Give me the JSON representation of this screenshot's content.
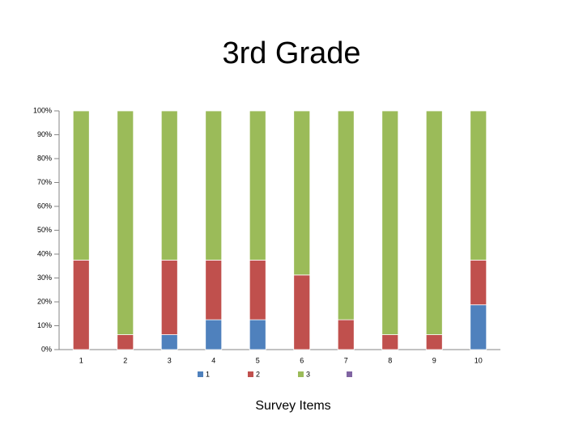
{
  "chart_data": {
    "type": "stacked_bar_100",
    "title": "3rd Grade",
    "x_label": "Survey Items",
    "categories": [
      "1",
      "2",
      "3",
      "4",
      "5",
      "6",
      "7",
      "8",
      "9",
      "10"
    ],
    "series": [
      {
        "name": "1",
        "color": "#4f81bd",
        "values": [
          0,
          0,
          6.25,
          12.5,
          12.5,
          0,
          0,
          0,
          0,
          18.75
        ]
      },
      {
        "name": "2",
        "color": "#c0504d",
        "values": [
          37.5,
          6.25,
          31.25,
          25,
          25,
          31.25,
          12.5,
          6.25,
          6.25,
          18.75
        ]
      },
      {
        "name": "3",
        "color": "#9bbb59",
        "values": [
          62.5,
          93.75,
          62.5,
          62.5,
          62.5,
          68.75,
          87.5,
          93.75,
          93.75,
          62.5
        ]
      }
    ],
    "ylim": [
      0,
      100
    ],
    "yticks": [
      {
        "value": 0,
        "label": "0%"
      },
      {
        "value": 10,
        "label": "10%"
      },
      {
        "value": 20,
        "label": "20%"
      },
      {
        "value": 30,
        "label": "30%"
      },
      {
        "value": 40,
        "label": "40%"
      },
      {
        "value": 50,
        "label": "50%"
      },
      {
        "value": 60,
        "label": "60%"
      },
      {
        "value": 70,
        "label": "70%"
      },
      {
        "value": 80,
        "label": "80%"
      },
      {
        "value": 90,
        "label": "90%"
      },
      {
        "value": 100,
        "label": "100%"
      }
    ],
    "legend": "bottom"
  }
}
